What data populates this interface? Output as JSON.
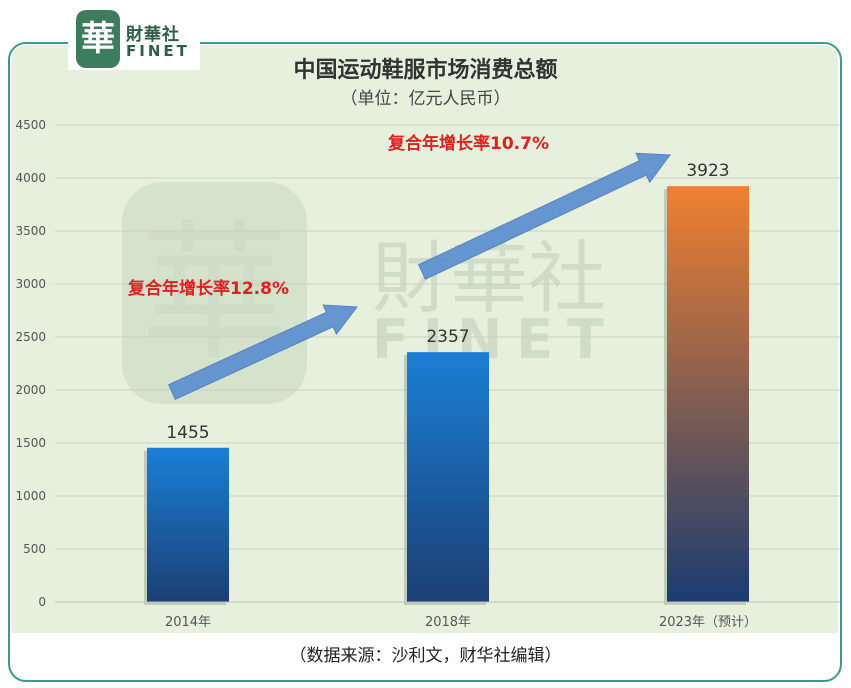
{
  "logo": {
    "mark": "華",
    "cn": "財華社",
    "en": "FINET"
  },
  "watermark": {
    "mark": "華",
    "cn": "財華社",
    "en": "FINET"
  },
  "source_note": "（数据来源：沙利文，财华社编辑）",
  "colors": {
    "bar_blue_top": "#1a7fd6",
    "bar_blue_bottom": "#1c3f73",
    "bar_orange_top": "#f08030",
    "bar_orange_bottom": "#1a3c70",
    "arrow": "#5b8fd0",
    "growth_text": "#e02020",
    "frame": "#3a9b8c",
    "plot_bg": "#e7f0dc"
  },
  "chart_data": {
    "type": "bar",
    "title": "中国运动鞋服市场消费总额",
    "subtitle": "（单位：亿元人民币）",
    "categories": [
      "2014年",
      "2018年",
      "2023年（预计）"
    ],
    "values": [
      1455,
      2357,
      3923
    ],
    "value_labels": [
      "1455",
      "2357",
      "3923"
    ],
    "ylim": [
      0,
      4500
    ],
    "yticks": [
      0,
      500,
      1000,
      1500,
      2000,
      2500,
      3000,
      3500,
      4000,
      4500
    ],
    "grid": true,
    "annotations": [
      {
        "text": "复合年增长率12.8%",
        "from": "2014年",
        "to": "2018年"
      },
      {
        "text": "复合年增长率10.7%",
        "from": "2018年",
        "to": "2023年（预计）"
      }
    ]
  }
}
